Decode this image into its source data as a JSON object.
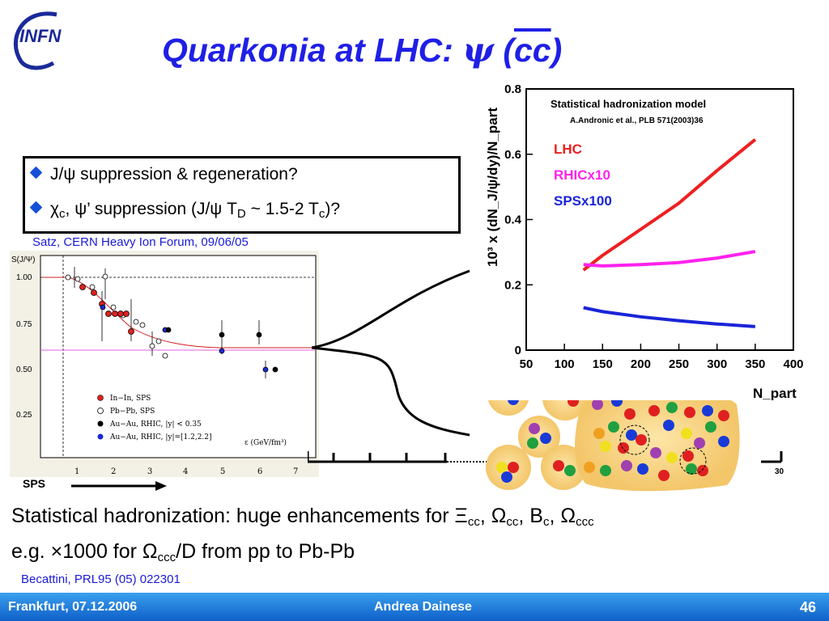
{
  "slide": {
    "title_prefix": "Quarkonia at LHC: ",
    "title_psi": "ψ",
    "title_paren_open": " (",
    "title_cc": "cc",
    "title_paren_close": ")",
    "bullets": [
      {
        "pre": "J/ψ suppression & regeneration?"
      },
      {
        "pre": "χ",
        "sub1": "c",
        "mid": ", ψ’ suppression (J/ψ T",
        "sub2": "D",
        "mid2": " ~ 1.5-2 T",
        "sub3": "c",
        "post": ")?"
      }
    ],
    "satz_ref": "Satz, CERN Heavy Ion Forum, 09/06/05",
    "sps_label": "SPS",
    "statement_line1_pre": "Statistical hadronization: huge enhancements for Ξ",
    "statement_line1_cc1": "cc",
    "statement_line1_mid1": ", Ω",
    "statement_line1_cc2": "cc",
    "statement_line1_mid2": ", B",
    "statement_line1_c": "c",
    "statement_line1_mid3": ", Ω",
    "statement_line1_ccc": "ccc",
    "statement_line2_pre": "e.g. ×1000 for Ω",
    "statement_line2_ccc": "ccc",
    "statement_line2_post": "/D from pp to Pb-Pb",
    "becattini_ref": "Becattini, PRL95 (05) 022301",
    "ruler_label": "30",
    "footer_left": "Frankfurt, 07.12.2006",
    "footer_center": "Andrea Dainese",
    "footer_right": "46",
    "logo_text": "INFN"
  },
  "left_plot": {
    "ylabel": "S(J/Ψ)",
    "yticks": [
      "1.00",
      "0.75",
      "0.50",
      "0.25"
    ],
    "xticks": [
      "1",
      "2",
      "3",
      "4",
      "5",
      "6",
      "7"
    ],
    "xlabel": "ε (GeV/fm³)",
    "legend": [
      "In−In, SPS",
      "Pb−Pb, SPS",
      "Au−Au, RHIC, |y| < 0.35",
      "Au−Au, RHIC, |y|=[1.2,2.2]"
    ]
  },
  "chart_data": {
    "type": "line",
    "title": "Statistical hadronization model",
    "subtitle": "A.Andronic et al., PLB 571(2003)36",
    "xlabel": "N_part",
    "ylabel": "10³ x (dN_J/ψ/dy)/N_part",
    "xlim": [
      50,
      400
    ],
    "ylim": [
      0,
      0.8
    ],
    "xticks": [
      50,
      100,
      150,
      200,
      250,
      300,
      350,
      400
    ],
    "yticks": [
      0,
      0.2,
      0.4,
      0.6,
      0.8
    ],
    "series": [
      {
        "name": "LHC",
        "color": "#ee2020",
        "x": [
          125,
          150,
          200,
          250,
          300,
          350
        ],
        "y": [
          0.245,
          0.29,
          0.37,
          0.45,
          0.55,
          0.645
        ]
      },
      {
        "name": "RHICx10",
        "color": "#ff22ee",
        "x": [
          125,
          150,
          200,
          250,
          300,
          350
        ],
        "y": [
          0.262,
          0.258,
          0.262,
          0.268,
          0.282,
          0.302
        ]
      },
      {
        "name": "SPSx100",
        "color": "#1a24d8",
        "x": [
          125,
          150,
          200,
          250,
          300,
          350
        ],
        "y": [
          0.13,
          0.118,
          0.102,
          0.09,
          0.08,
          0.072
        ]
      }
    ]
  }
}
